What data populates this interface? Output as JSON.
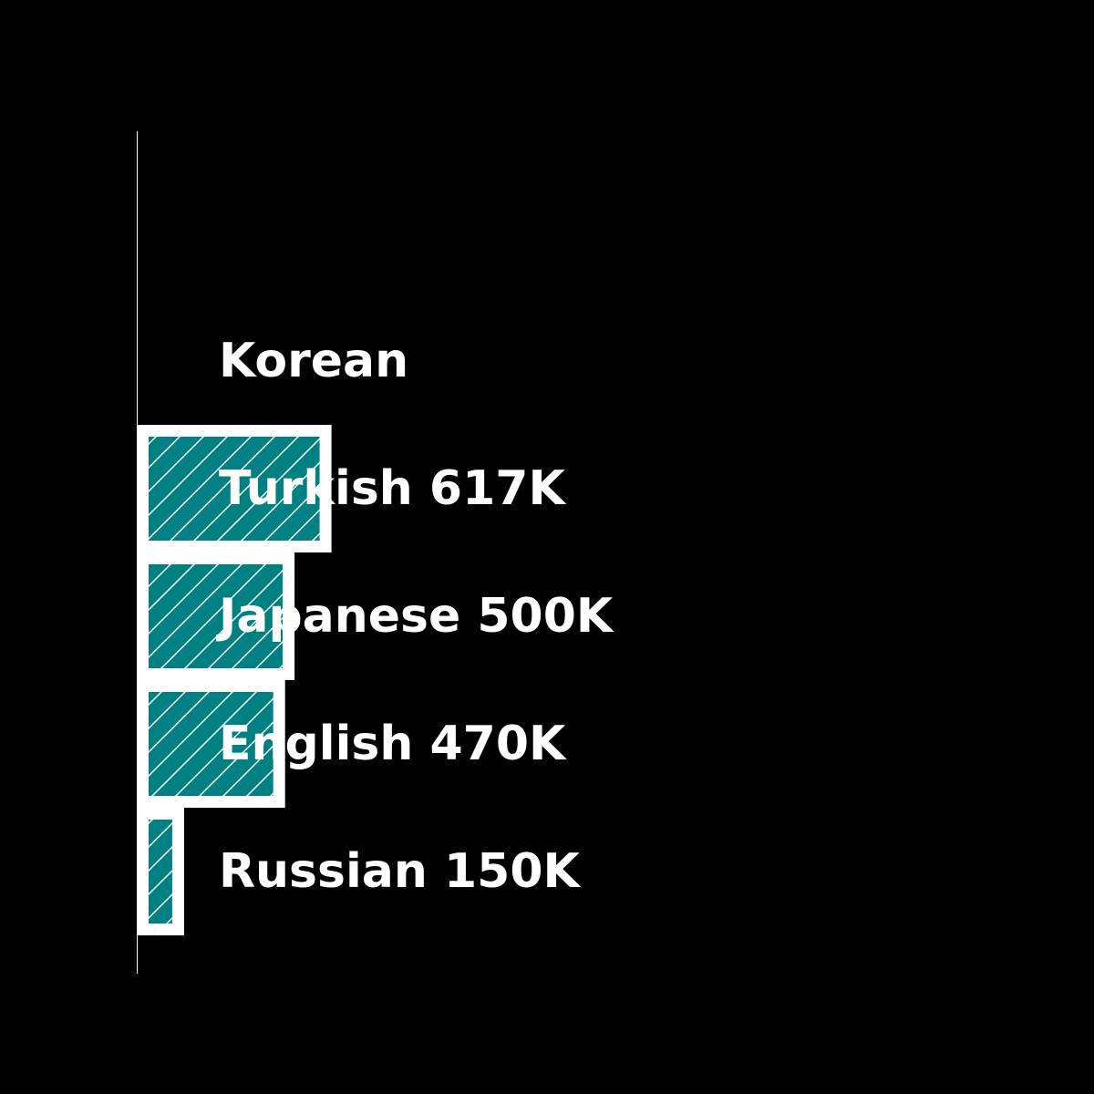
{
  "chart_data": {
    "type": "bar",
    "orientation": "horizontal",
    "title": "",
    "xlabel": "",
    "ylabel": "",
    "categories": [
      "Korean",
      "Turkish",
      "Japanese",
      "English",
      "Russian"
    ],
    "values": [
      null,
      617000,
      500000,
      470000,
      150000
    ],
    "labels": [
      "Korean",
      "Turkish 617K",
      "Japanese 500K",
      "English 470K",
      "Russian 150K"
    ],
    "xlim": [
      0,
      2600000
    ],
    "grid": false,
    "legend": "none",
    "colors": {
      "background": "#000000",
      "bar_fill": "#008080",
      "bar_edge": "#ffffff",
      "hatch": "#ffffff",
      "text": "#ffffff",
      "axis": "#ffffff"
    }
  }
}
